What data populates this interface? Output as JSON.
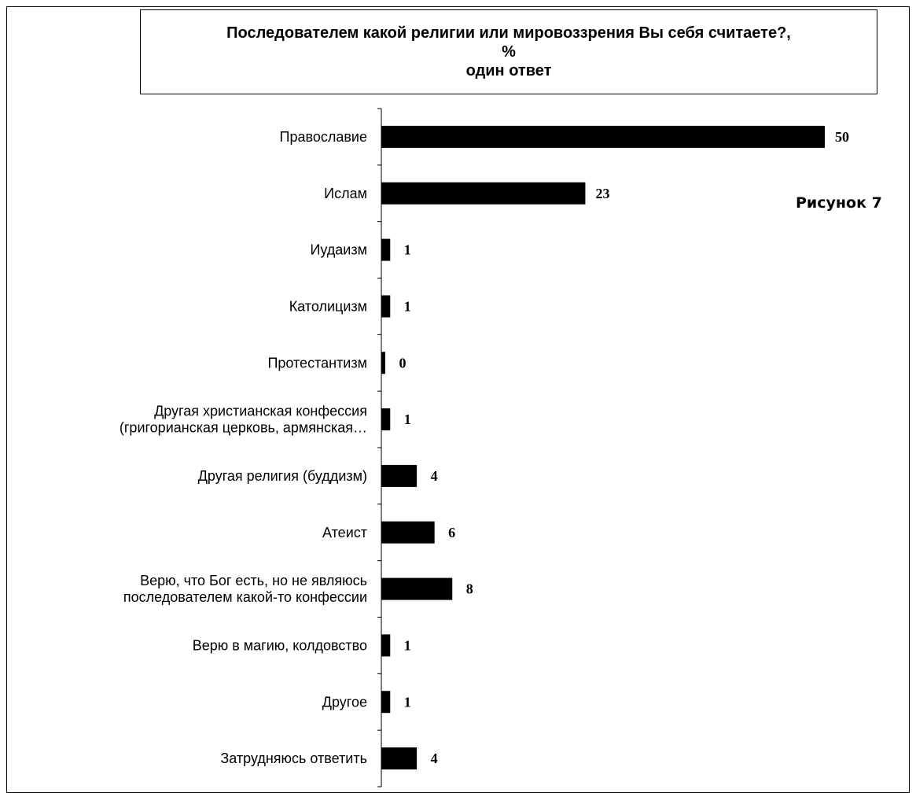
{
  "chart_data": {
    "type": "bar",
    "orientation": "horizontal",
    "title_lines": [
      "Последователем какой религии  или мировоззрения   Вы себя считаете?,",
      "%",
      "один ответ"
    ],
    "figure_label": "Рисунок 7",
    "categories": [
      [
        "Православие"
      ],
      [
        "Ислам"
      ],
      [
        "Иудаизм"
      ],
      [
        "Католицизм"
      ],
      [
        "Протестантизм"
      ],
      [
        "Другая христианская конфессия",
        "(григорианская церковь, армянская…"
      ],
      [
        "Другая религия (буддизм)"
      ],
      [
        "Атеист"
      ],
      [
        "Верю, что Бог есть, но не являюсь",
        "последователем какой-то конфессии"
      ],
      [
        "Верю в магию, колдовство"
      ],
      [
        "Другое"
      ],
      [
        "Затрудняюсь ответить"
      ]
    ],
    "values": [
      50,
      23,
      1,
      1,
      0,
      1,
      4,
      6,
      8,
      1,
      1,
      4
    ],
    "bar_color": "#000000",
    "grid": false,
    "legend": "none"
  }
}
